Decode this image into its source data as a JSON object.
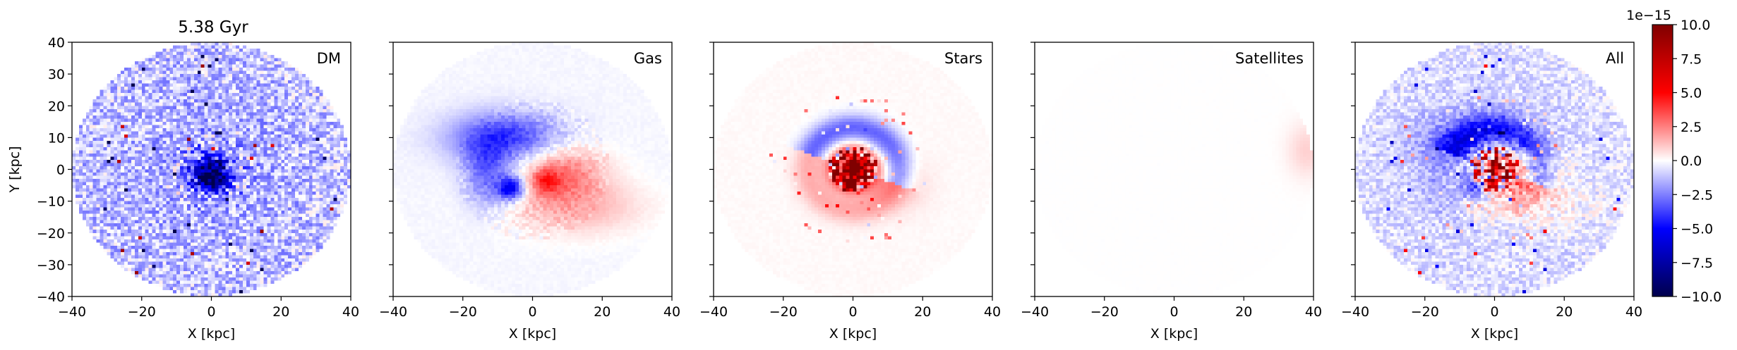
{
  "figure": {
    "title": "5.38 Gyr"
  },
  "chart_data": {
    "type": "heatmap",
    "panels": [
      {
        "label": "DM",
        "pattern": "dm"
      },
      {
        "label": "Gas",
        "pattern": "gas"
      },
      {
        "label": "Stars",
        "pattern": "stars"
      },
      {
        "label": "Satellites",
        "pattern": "satellites"
      },
      {
        "label": "All",
        "pattern": "all"
      }
    ],
    "xlabel": "X [kpc]",
    "ylabel": "Y [kpc]",
    "xlim": [
      -40,
      40
    ],
    "ylim": [
      -40,
      40
    ],
    "xticks": [
      -40,
      -20,
      0,
      20,
      40
    ],
    "yticks": [
      -40,
      -30,
      -20,
      -10,
      0,
      10,
      20,
      30,
      40
    ],
    "colorbar": {
      "colormap": "seismic",
      "range": [
        -10.0,
        10.0
      ],
      "offset_text": "1e−15",
      "ticks": [
        -10.0,
        -7.5,
        -5.0,
        -2.5,
        0.0,
        2.5,
        5.0,
        7.5,
        10.0
      ],
      "tick_labels": [
        "−10.0",
        "−7.5",
        "−5.0",
        "−2.5",
        "0.0",
        "2.5",
        "5.0",
        "7.5",
        "10.0"
      ],
      "colors": {
        "low": "#00004c",
        "mid": "#ffffff",
        "high": "#800000"
      }
    }
  }
}
